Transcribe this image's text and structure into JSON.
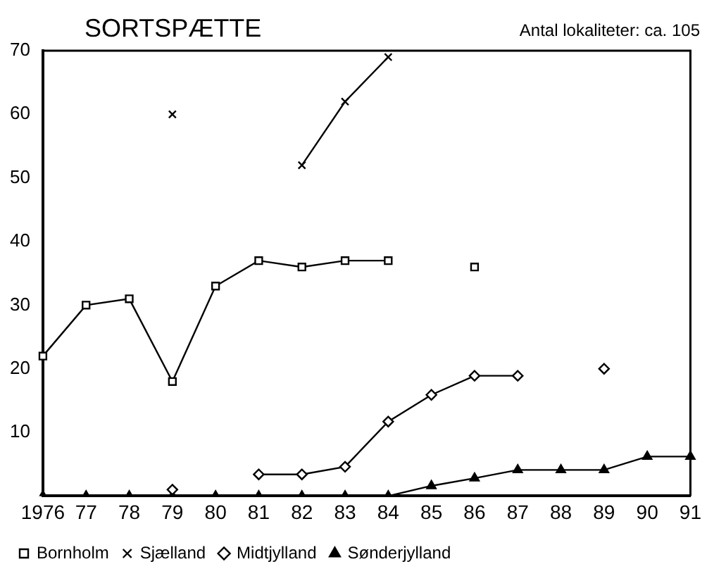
{
  "chart_data": {
    "type": "line",
    "title": "SORTSPÆTTE",
    "annotations": [
      "Antal lokaliteter: ca. 105"
    ],
    "categories": [
      "1976",
      "77",
      "78",
      "79",
      "80",
      "81",
      "82",
      "83",
      "84",
      "85",
      "86",
      "87",
      "88",
      "89",
      "90",
      "91"
    ],
    "ylim": [
      0,
      70
    ],
    "yticks": [
      10,
      20,
      30,
      40,
      50,
      60,
      70
    ],
    "grid": false,
    "legend": "bottom",
    "series": [
      {
        "name": "Bornholm",
        "color": "#000000",
        "marker": "square",
        "values": [
          22,
          30,
          31,
          18,
          33,
          37,
          36,
          37,
          37,
          null,
          36,
          null,
          null,
          null,
          null,
          null
        ]
      },
      {
        "name": "Sjælland",
        "color": "#000000",
        "marker": "cross",
        "values": [
          null,
          null,
          null,
          60,
          null,
          null,
          52,
          62,
          69,
          null,
          null,
          null,
          null,
          null,
          null,
          null
        ]
      },
      {
        "name": "Midtjylland",
        "color": "#000000",
        "marker": "diamond",
        "values": [
          null,
          null,
          null,
          1,
          null,
          3.4,
          3.4,
          4.6,
          11.7,
          15.9,
          18.9,
          18.9,
          null,
          20,
          null,
          null
        ]
      },
      {
        "name": "Sønderjylland",
        "color": "#000000",
        "marker": "triangle",
        "values": [
          0,
          0,
          0,
          0,
          0,
          0,
          0,
          0,
          0,
          1.6,
          2.8,
          4.1,
          4.1,
          4.1,
          6.2,
          6.2
        ]
      }
    ]
  }
}
